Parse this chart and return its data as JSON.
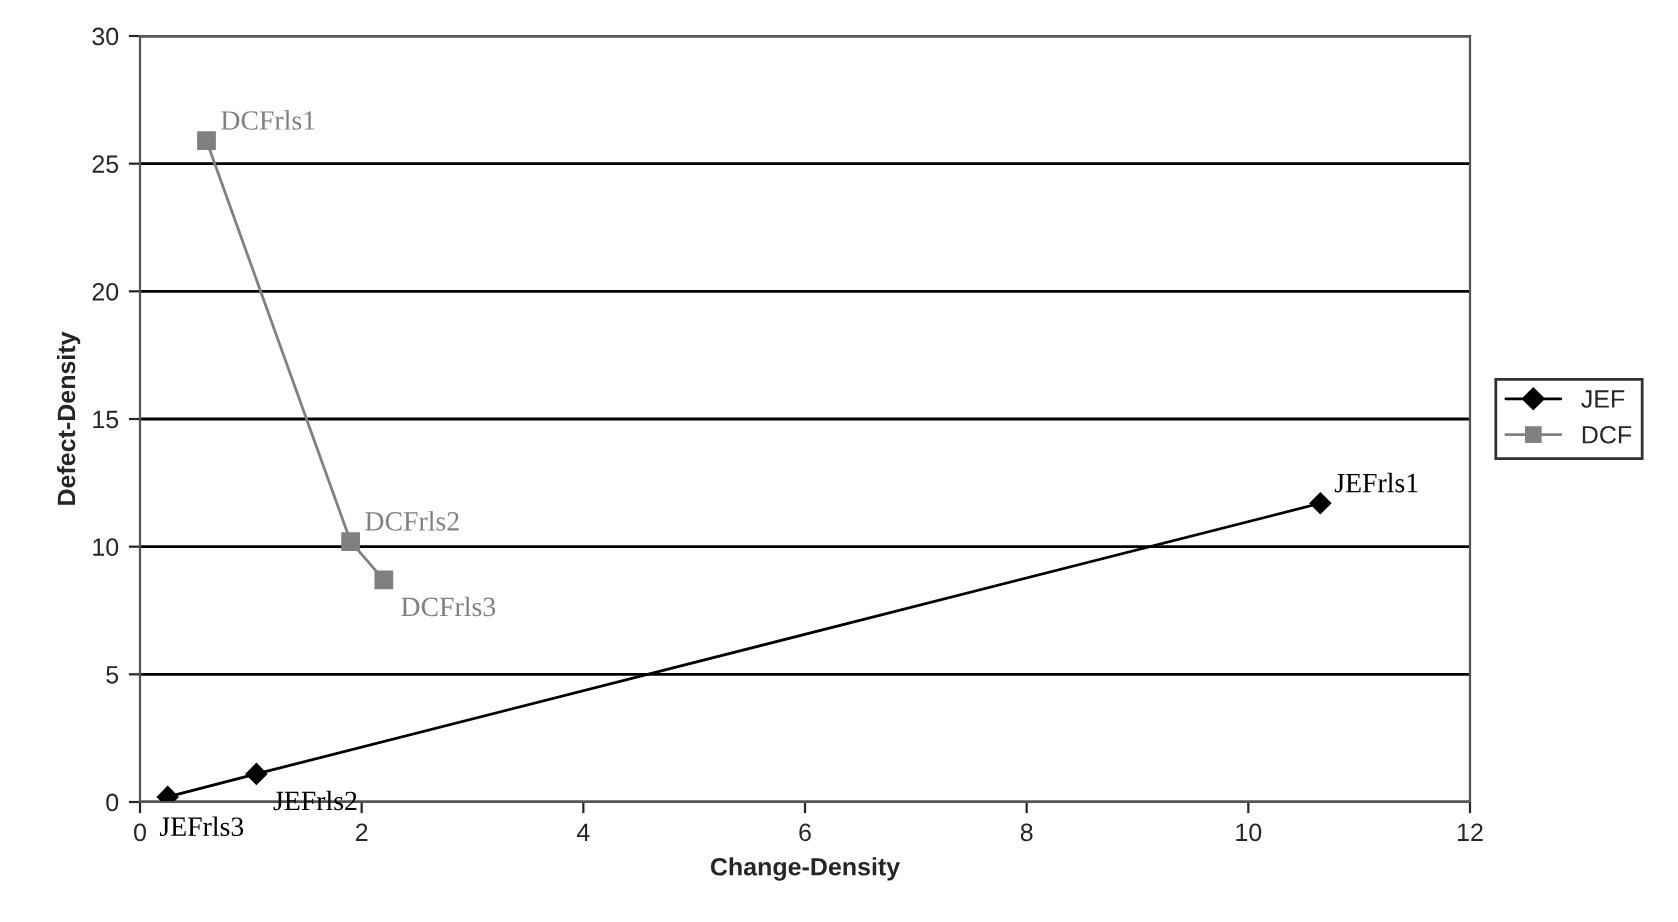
{
  "chart_data": {
    "type": "line",
    "xlabel": "Change-Density",
    "ylabel": "Defect-Density",
    "series": [
      {
        "name": "JEF",
        "color": "#000000",
        "marker": "diamond",
        "x": [
          10.65,
          1.05,
          0.25
        ],
        "values": [
          11.7,
          1.1,
          0.2
        ]
      },
      {
        "name": "DCF",
        "color": "#808080",
        "marker": "square",
        "x": [
          0.6,
          1.9,
          2.2
        ],
        "values": [
          25.9,
          10.2,
          8.7
        ]
      }
    ],
    "annotations": [
      {
        "text": "JEFrls1",
        "x": 10.65,
        "y": 11.7
      },
      {
        "text": "JEFrls2",
        "x": 1.05,
        "y": 1.1
      },
      {
        "text": "JEFrls3",
        "x": 0.25,
        "y": 0.2
      },
      {
        "text": "DCFrls1",
        "x": 0.6,
        "y": 25.9
      },
      {
        "text": "DCFrls2",
        "x": 1.9,
        "y": 10.2
      },
      {
        "text": "DCFrls3",
        "x": 2.2,
        "y": 8.7
      }
    ],
    "xlim": [
      0,
      12
    ],
    "xticks": [
      0,
      2,
      4,
      6,
      8,
      10,
      12
    ],
    "ylim": [
      0,
      30
    ],
    "yticks": [
      0,
      5,
      10,
      15,
      20,
      25,
      30
    ],
    "grid": "y",
    "legend": "right",
    "line_style": "solid"
  }
}
